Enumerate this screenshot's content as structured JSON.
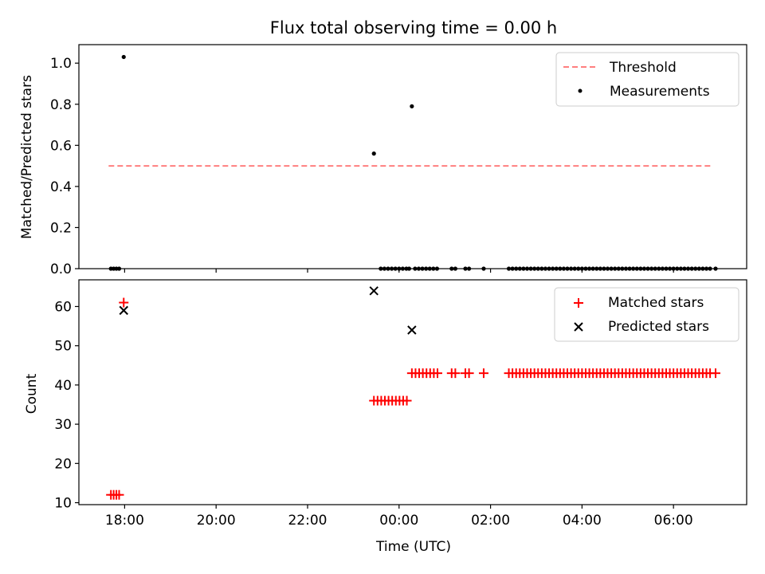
{
  "figure_title": "Flux total observing time = 0.00 h",
  "chart_data": [
    {
      "type": "scatter",
      "panel": "top",
      "title": "Flux total observing time = 0.00 h",
      "xlabel": "",
      "ylabel": "Matched/Predicted stars",
      "x_unit": "hours_since_17:00_UTC",
      "xlim": [
        17.0,
        31.6
      ],
      "ylim": [
        0.0,
        1.09
      ],
      "yticks": [
        0.0,
        0.2,
        0.4,
        0.6,
        0.8,
        1.0
      ],
      "ytick_labels": [
        "0.0",
        "0.2",
        "0.4",
        "0.6",
        "0.8",
        "1.0"
      ],
      "xticks": [
        17.0,
        18.0,
        20.0,
        22.0,
        24.0,
        26.0,
        28.0,
        30.0
      ],
      "legend_position": "top-right",
      "threshold": {
        "name": "Threshold",
        "value": 0.5,
        "x_range": [
          17.65,
          30.85
        ],
        "color": "#ff7f7f",
        "style": "dashed"
      },
      "series": [
        {
          "name": "Measurements",
          "color": "#000000",
          "marker": "dot",
          "points": [
            [
              17.7,
              0.0
            ],
            [
              17.76,
              0.0
            ],
            [
              17.82,
              0.0
            ],
            [
              17.88,
              0.0
            ],
            [
              17.98,
              1.03
            ],
            [
              23.45,
              0.56
            ],
            [
              24.28,
              0.79
            ],
            [
              23.6,
              0
            ],
            [
              23.68,
              0
            ],
            [
              23.76,
              0
            ],
            [
              23.84,
              0
            ],
            [
              23.92,
              0
            ],
            [
              24.0,
              0
            ],
            [
              24.08,
              0
            ],
            [
              24.16,
              0
            ],
            [
              24.22,
              0
            ],
            [
              24.35,
              0
            ],
            [
              24.43,
              0
            ],
            [
              24.51,
              0
            ],
            [
              24.59,
              0
            ],
            [
              24.67,
              0
            ],
            [
              24.75,
              0
            ],
            [
              24.83,
              0
            ],
            [
              25.15,
              0
            ],
            [
              25.23,
              0
            ],
            [
              25.45,
              0
            ],
            [
              25.53,
              0
            ],
            [
              25.85,
              0
            ],
            [
              26.4,
              0
            ],
            [
              26.48,
              0
            ],
            [
              26.56,
              0
            ],
            [
              26.64,
              0
            ],
            [
              26.72,
              0
            ],
            [
              26.8,
              0
            ],
            [
              26.88,
              0
            ],
            [
              26.96,
              0
            ],
            [
              27.04,
              0
            ],
            [
              27.12,
              0
            ],
            [
              27.2,
              0
            ],
            [
              27.28,
              0
            ],
            [
              27.36,
              0
            ],
            [
              27.44,
              0
            ],
            [
              27.52,
              0
            ],
            [
              27.6,
              0
            ],
            [
              27.68,
              0
            ],
            [
              27.76,
              0
            ],
            [
              27.84,
              0
            ],
            [
              27.92,
              0
            ],
            [
              28.0,
              0
            ],
            [
              28.08,
              0
            ],
            [
              28.16,
              0
            ],
            [
              28.24,
              0
            ],
            [
              28.32,
              0
            ],
            [
              28.4,
              0
            ],
            [
              28.48,
              0
            ],
            [
              28.56,
              0
            ],
            [
              28.64,
              0
            ],
            [
              28.72,
              0
            ],
            [
              28.8,
              0
            ],
            [
              28.88,
              0
            ],
            [
              28.96,
              0
            ],
            [
              29.04,
              0
            ],
            [
              29.12,
              0
            ],
            [
              29.2,
              0
            ],
            [
              29.28,
              0
            ],
            [
              29.36,
              0
            ],
            [
              29.44,
              0
            ],
            [
              29.52,
              0
            ],
            [
              29.6,
              0
            ],
            [
              29.68,
              0
            ],
            [
              29.76,
              0
            ],
            [
              29.84,
              0
            ],
            [
              29.92,
              0
            ],
            [
              30.0,
              0
            ],
            [
              30.08,
              0
            ],
            [
              30.16,
              0
            ],
            [
              30.24,
              0
            ],
            [
              30.32,
              0
            ],
            [
              30.4,
              0
            ],
            [
              30.48,
              0
            ],
            [
              30.56,
              0
            ],
            [
              30.64,
              0
            ],
            [
              30.72,
              0
            ],
            [
              30.8,
              0
            ],
            [
              30.92,
              0
            ]
          ]
        }
      ]
    },
    {
      "type": "scatter",
      "panel": "bottom",
      "title": "",
      "xlabel": "Time (UTC)",
      "ylabel": "Count",
      "x_unit": "hours_since_17:00_UTC",
      "xlim": [
        17.0,
        31.6
      ],
      "ylim": [
        9.5,
        66.8
      ],
      "yticks": [
        10,
        20,
        30,
        40,
        50,
        60
      ],
      "ytick_labels": [
        "10",
        "20",
        "30",
        "40",
        "50",
        "60"
      ],
      "xticks": [
        18.0,
        20.0,
        22.0,
        24.0,
        26.0,
        28.0,
        30.0
      ],
      "xtick_labels": [
        "18:00",
        "20:00",
        "22:00",
        "00:00",
        "02:00",
        "04:00",
        "06:00"
      ],
      "legend_position": "top-right",
      "series": [
        {
          "name": "Matched stars",
          "color": "#ff0000",
          "marker": "plus",
          "points": [
            [
              17.7,
              12
            ],
            [
              17.76,
              12
            ],
            [
              17.82,
              12
            ],
            [
              17.88,
              12
            ],
            [
              17.98,
              61
            ],
            [
              23.45,
              36
            ],
            [
              23.53,
              36
            ],
            [
              23.61,
              36
            ],
            [
              23.69,
              36
            ],
            [
              23.77,
              36
            ],
            [
              23.85,
              36
            ],
            [
              23.93,
              36
            ],
            [
              24.01,
              36
            ],
            [
              24.09,
              36
            ],
            [
              24.17,
              36
            ],
            [
              24.28,
              43
            ],
            [
              24.36,
              43
            ],
            [
              24.44,
              43
            ],
            [
              24.52,
              43
            ],
            [
              24.6,
              43
            ],
            [
              24.68,
              43
            ],
            [
              24.76,
              43
            ],
            [
              24.84,
              43
            ],
            [
              25.15,
              43
            ],
            [
              25.23,
              43
            ],
            [
              25.45,
              43
            ],
            [
              25.53,
              43
            ],
            [
              25.85,
              43
            ],
            [
              26.4,
              43
            ],
            [
              26.48,
              43
            ],
            [
              26.56,
              43
            ],
            [
              26.64,
              43
            ],
            [
              26.72,
              43
            ],
            [
              26.8,
              43
            ],
            [
              26.88,
              43
            ],
            [
              26.96,
              43
            ],
            [
              27.04,
              43
            ],
            [
              27.12,
              43
            ],
            [
              27.2,
              43
            ],
            [
              27.28,
              43
            ],
            [
              27.36,
              43
            ],
            [
              27.44,
              43
            ],
            [
              27.52,
              43
            ],
            [
              27.6,
              43
            ],
            [
              27.68,
              43
            ],
            [
              27.76,
              43
            ],
            [
              27.84,
              43
            ],
            [
              27.92,
              43
            ],
            [
              28.0,
              43
            ],
            [
              28.08,
              43
            ],
            [
              28.16,
              43
            ],
            [
              28.24,
              43
            ],
            [
              28.32,
              43
            ],
            [
              28.4,
              43
            ],
            [
              28.48,
              43
            ],
            [
              28.56,
              43
            ],
            [
              28.64,
              43
            ],
            [
              28.72,
              43
            ],
            [
              28.8,
              43
            ],
            [
              28.88,
              43
            ],
            [
              28.96,
              43
            ],
            [
              29.04,
              43
            ],
            [
              29.12,
              43
            ],
            [
              29.2,
              43
            ],
            [
              29.28,
              43
            ],
            [
              29.36,
              43
            ],
            [
              29.44,
              43
            ],
            [
              29.52,
              43
            ],
            [
              29.6,
              43
            ],
            [
              29.68,
              43
            ],
            [
              29.76,
              43
            ],
            [
              29.84,
              43
            ],
            [
              29.92,
              43
            ],
            [
              30.0,
              43
            ],
            [
              30.08,
              43
            ],
            [
              30.16,
              43
            ],
            [
              30.24,
              43
            ],
            [
              30.32,
              43
            ],
            [
              30.4,
              43
            ],
            [
              30.48,
              43
            ],
            [
              30.56,
              43
            ],
            [
              30.64,
              43
            ],
            [
              30.72,
              43
            ],
            [
              30.8,
              43
            ],
            [
              30.92,
              43
            ]
          ]
        },
        {
          "name": "Predicted stars",
          "color": "#000000",
          "marker": "x",
          "points": [
            [
              17.98,
              59
            ],
            [
              23.45,
              64
            ],
            [
              24.28,
              54
            ]
          ]
        }
      ]
    }
  ]
}
